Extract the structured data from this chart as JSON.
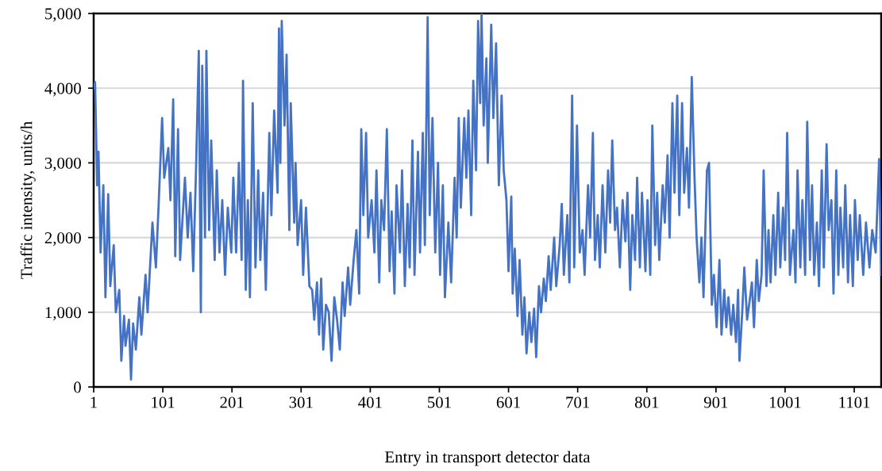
{
  "chart_data": {
    "type": "line",
    "xlabel": "Entry in transport detector data",
    "ylabel": "Traffic intensity, units/h",
    "xlim": [
      1,
      1140
    ],
    "xticks": [
      1,
      101,
      201,
      301,
      401,
      501,
      601,
      701,
      801,
      901,
      1001,
      1101
    ],
    "ylim": [
      0,
      5000
    ],
    "yticks": [
      {
        "value": 0,
        "label": "0"
      },
      {
        "value": 1000,
        "label": "1,000"
      },
      {
        "value": 2000,
        "label": "2,000"
      },
      {
        "value": 3000,
        "label": "3,000"
      },
      {
        "value": 4000,
        "label": "4,000"
      },
      {
        "value": 5000,
        "label": "5,000"
      }
    ],
    "grid": "y",
    "legend": false,
    "marker": "none",
    "line_style": "solid",
    "series": [
      {
        "color": "#4472c4",
        "x": [
          1,
          3,
          6,
          8,
          11,
          15,
          18,
          22,
          25,
          30,
          33,
          38,
          41,
          45,
          47,
          52,
          55,
          58,
          62,
          67,
          70,
          76,
          79,
          86,
          91,
          95,
          100,
          103,
          109,
          112,
          116,
          119,
          123,
          126,
          133,
          137,
          141,
          145,
          149,
          153,
          156,
          158,
          162,
          164,
          168,
          171,
          176,
          179,
          183,
          187,
          191,
          195,
          200,
          203,
          207,
          211,
          215,
          217,
          221,
          224,
          227,
          231,
          235,
          239,
          242,
          246,
          250,
          255,
          258,
          262,
          267,
          269,
          271,
          273,
          277,
          280,
          284,
          286,
          291,
          293,
          296,
          301,
          304,
          308,
          313,
          317,
          320,
          324,
          327,
          330,
          333,
          337,
          341,
          345,
          349,
          353,
          357,
          361,
          364,
          369,
          372,
          377,
          381,
          385,
          388,
          391,
          395,
          398,
          403,
          407,
          410,
          414,
          417,
          421,
          425,
          429,
          432,
          436,
          439,
          444,
          447,
          451,
          455,
          458,
          462,
          465,
          470,
          473,
          477,
          480,
          484,
          487,
          491,
          495,
          499,
          502,
          506,
          509,
          514,
          518,
          523,
          526,
          529,
          532,
          537,
          540,
          543,
          547,
          550,
          554,
          557,
          560,
          562,
          565,
          569,
          571,
          576,
          579,
          583,
          587,
          591,
          594,
          598,
          601,
          605,
          607,
          610,
          614,
          617,
          621,
          624,
          627,
          631,
          634,
          638,
          641,
          645,
          648,
          652,
          655,
          659,
          662,
          667,
          670,
          675,
          678,
          681,
          686,
          689,
          693,
          696,
          700,
          704,
          708,
          711,
          716,
          719,
          723,
          726,
          730,
          733,
          737,
          741,
          745,
          748,
          751,
          755,
          758,
          762,
          766,
          770,
          773,
          777,
          780,
          784,
          787,
          791,
          794,
          799,
          802,
          806,
          809,
          813,
          816,
          819,
          824,
          827,
          831,
          834,
          838,
          841,
          845,
          848,
          852,
          855,
          859,
          862,
          866,
          870,
          873,
          877,
          880,
          883,
          888,
          891,
          895,
          898,
          902,
          906,
          909,
          913,
          916,
          919,
          923,
          926,
          930,
          933,
          935,
          939,
          942,
          946,
          949,
          953,
          956,
          960,
          963,
          967,
          970,
          974,
          977,
          980,
          984,
          987,
          991,
          994,
          998,
          1001,
          1004,
          1008,
          1013,
          1016,
          1019,
          1023,
          1026,
          1030,
          1033,
          1037,
          1040,
          1043,
          1047,
          1050,
          1054,
          1057,
          1061,
          1064,
          1068,
          1071,
          1075,
          1078,
          1081,
          1085,
          1088,
          1092,
          1095,
          1099,
          1102,
          1106,
          1109,
          1114,
          1118,
          1123,
          1127,
          1132,
          1137,
          1140
        ],
        "values": [
          4000,
          4080,
          2700,
          3150,
          1800,
          2700,
          1200,
          2580,
          1350,
          1900,
          1000,
          1300,
          350,
          950,
          550,
          900,
          100,
          850,
          500,
          1200,
          700,
          1500,
          1000,
          2200,
          1600,
          2450,
          3600,
          2800,
          3200,
          2500,
          3850,
          1750,
          3450,
          1700,
          2800,
          2000,
          2600,
          1550,
          2900,
          4500,
          1000,
          4300,
          2000,
          4500,
          2100,
          3300,
          1700,
          2900,
          1800,
          2500,
          1500,
          2400,
          1800,
          2800,
          1800,
          3000,
          1700,
          4100,
          1300,
          2500,
          1200,
          3800,
          1600,
          2900,
          1700,
          2600,
          1300,
          3400,
          2300,
          3700,
          2600,
          4800,
          3000,
          4900,
          3500,
          4450,
          2100,
          3800,
          2200,
          3000,
          1900,
          2500,
          1500,
          2400,
          1350,
          1300,
          900,
          1400,
          700,
          1450,
          500,
          1100,
          1000,
          350,
          1200,
          900,
          500,
          1400,
          950,
          1600,
          1100,
          1700,
          2100,
          1250,
          3450,
          2300,
          3400,
          2000,
          2500,
          1800,
          2900,
          1400,
          2500,
          2100,
          3450,
          1550,
          2350,
          1250,
          2700,
          1800,
          2900,
          1350,
          2450,
          1600,
          3300,
          1500,
          3150,
          1800,
          3400,
          1900,
          4950,
          2300,
          3600,
          1800,
          3000,
          1500,
          2700,
          1200,
          2200,
          1400,
          2800,
          2000,
          3600,
          2400,
          3600,
          2800,
          3700,
          2300,
          4100,
          2900,
          4900,
          3800,
          5000,
          3500,
          4400,
          3000,
          4850,
          3600,
          4600,
          2700,
          3900,
          2900,
          2500,
          1550,
          2550,
          1250,
          1850,
          950,
          1700,
          700,
          1200,
          450,
          1000,
          600,
          1050,
          400,
          1350,
          1000,
          1450,
          1150,
          1750,
          1300,
          2000,
          1350,
          1900,
          2450,
          1500,
          2300,
          1400,
          3900,
          1600,
          3500,
          1800,
          2100,
          1500,
          2700,
          2000,
          3400,
          1700,
          2300,
          1600,
          2700,
          1800,
          2900,
          2200,
          3300,
          2100,
          2400,
          1600,
          2500,
          1950,
          2600,
          1300,
          2300,
          1700,
          2800,
          1600,
          2600,
          1550,
          2500,
          1500,
          3500,
          1900,
          2600,
          1700,
          2700,
          2200,
          3100,
          2000,
          3800,
          2600,
          3900,
          2300,
          3800,
          2600,
          3200,
          2400,
          4150,
          2800,
          2000,
          1400,
          2000,
          1200,
          2900,
          3000,
          1100,
          1500,
          800,
          1700,
          700,
          1300,
          800,
          1200,
          700,
          1100,
          600,
          1300,
          350,
          1000,
          1600,
          900,
          1100,
          1400,
          800,
          1700,
          1150,
          1500,
          2900,
          1350,
          2100,
          1400,
          2300,
          1500,
          2600,
          1600,
          2400,
          1700,
          3400,
          1500,
          2100,
          1400,
          2900,
          1600,
          2500,
          1500,
          3550,
          1700,
          2700,
          1500,
          2200,
          1350,
          2900,
          1600,
          3250,
          2100,
          2500,
          1250,
          2900,
          1500,
          2400,
          1600,
          2700,
          1400,
          2300,
          1350,
          2500,
          1700,
          2300,
          1500,
          2200,
          1600,
          2100,
          1800,
          3050,
          1500
        ]
      }
    ]
  }
}
